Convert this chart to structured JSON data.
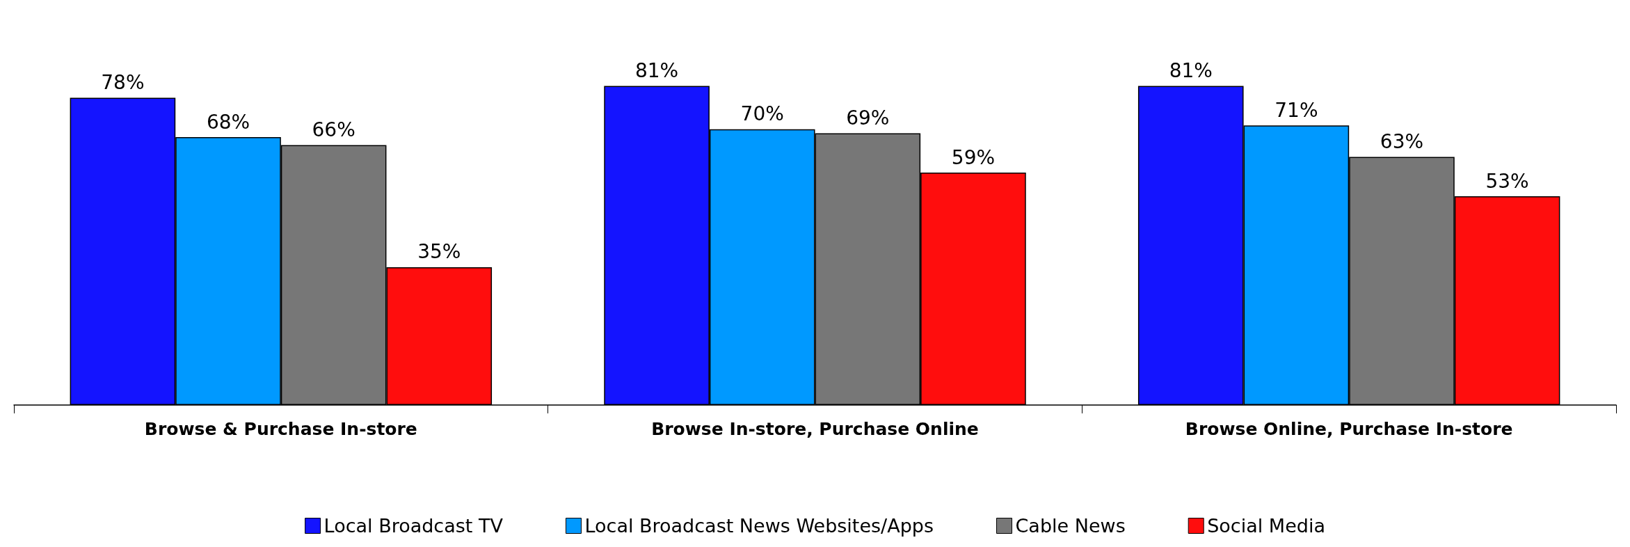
{
  "chart_data": {
    "type": "bar",
    "categories": [
      "Browse & Purchase In-store",
      "Browse In-store, Purchase Online",
      "Browse Online, Purchase In-store"
    ],
    "series": [
      {
        "name": "Local Broadcast TV",
        "color": "#1414ff",
        "values": [
          78,
          81,
          81
        ],
        "value_labels": [
          "78%",
          "81%",
          "81%"
        ]
      },
      {
        "name": "Local Broadcast News Websites/Apps",
        "color": "#0099ff",
        "values": [
          68,
          70,
          71
        ],
        "value_labels": [
          "68%",
          "70%",
          "71%"
        ]
      },
      {
        "name": "Cable News",
        "color": "#777777",
        "values": [
          66,
          69,
          63
        ],
        "value_labels": [
          "66%",
          "69%",
          "63%"
        ]
      },
      {
        "name": "Social Media",
        "color": "#ff0d0d",
        "values": [
          35,
          59,
          53
        ],
        "value_labels": [
          "35%",
          "59%",
          "53%"
        ]
      }
    ],
    "tick_labels": "x",
    "legend": "bottom"
  }
}
